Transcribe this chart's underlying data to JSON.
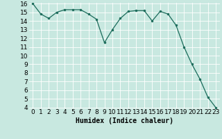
{
  "x": [
    0,
    1,
    2,
    3,
    4,
    5,
    6,
    7,
    8,
    9,
    10,
    11,
    12,
    13,
    14,
    15,
    16,
    17,
    18,
    19,
    20,
    21,
    22,
    23
  ],
  "y": [
    16,
    14.8,
    14.3,
    15.0,
    15.3,
    15.3,
    15.3,
    14.8,
    14.2,
    11.5,
    13.0,
    14.3,
    15.1,
    15.2,
    15.2,
    14.0,
    15.1,
    14.8,
    13.5,
    11.0,
    9.0,
    7.3,
    5.2,
    4.0
  ],
  "line_color": "#1a6b5a",
  "marker_color": "#1a6b5a",
  "bg_color": "#c8e8e0",
  "grid_color": "#ffffff",
  "xlabel": "Humidex (Indice chaleur)",
  "ylim": [
    4,
    16
  ],
  "xlim": [
    -0.5,
    23.5
  ],
  "yticks": [
    4,
    5,
    6,
    7,
    8,
    9,
    10,
    11,
    12,
    13,
    14,
    15,
    16
  ],
  "xticks": [
    0,
    1,
    2,
    3,
    4,
    5,
    6,
    7,
    8,
    9,
    10,
    11,
    12,
    13,
    14,
    15,
    16,
    17,
    18,
    19,
    20,
    21,
    22,
    23
  ],
  "xlabel_fontsize": 7,
  "tick_fontsize": 6.5
}
